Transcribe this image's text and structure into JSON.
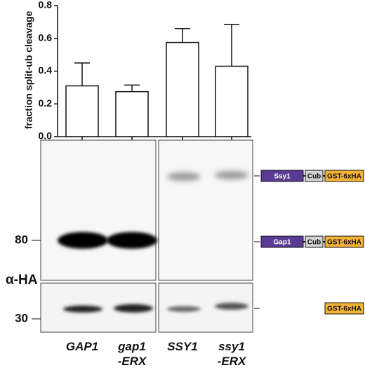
{
  "chart_data": {
    "type": "bar",
    "y_label": "fraction split-ub cleavage",
    "categories": [
      "GAP1",
      "gap1\n-ERX",
      "SSY1",
      "ssy1\n-ERX"
    ],
    "values": [
      0.31,
      0.275,
      0.575,
      0.43
    ],
    "errors": [
      0.14,
      0.04,
      0.085,
      0.255
    ],
    "color": "#ffffff",
    "ylim": [
      0,
      0.8
    ],
    "yticks": [
      {
        "value": 0,
        "label": "0.0"
      },
      0.2,
      0.4,
      0.6,
      0.8
    ]
  },
  "blot": {
    "antibody": "α-HA",
    "markers": [
      "80",
      "30"
    ]
  },
  "constructs": [
    {
      "parts": [
        "Ssy1",
        "Cub",
        "GST-6xHA"
      ]
    },
    {
      "parts": [
        "Gap1",
        "Cub",
        "GST-6xHA"
      ]
    },
    {
      "parts": [
        "GST-6xHA"
      ]
    }
  ]
}
